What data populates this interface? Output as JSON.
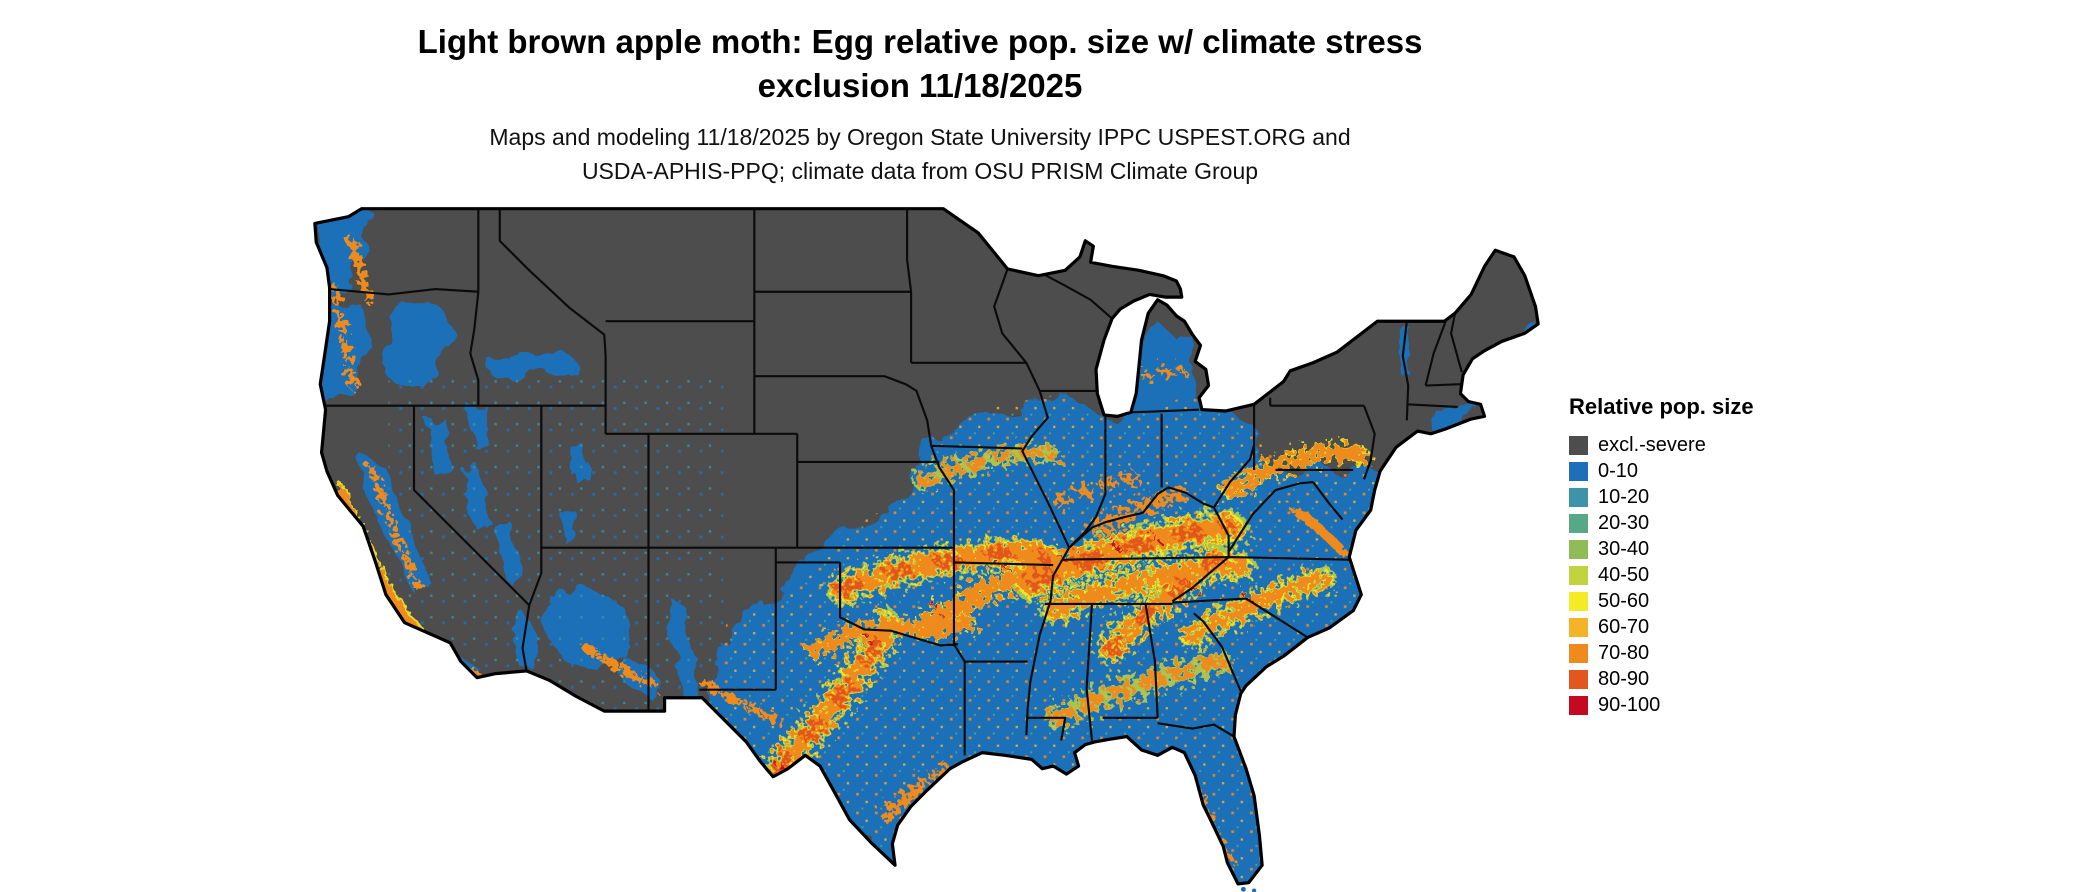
{
  "header": {
    "title_line1": "Light brown apple moth: Egg relative pop. size w/ climate stress",
    "title_line2": "exclusion 11/18/2025",
    "subtitle_line1": "Maps and modeling 11/18/2025 by Oregon State University IPPC USPEST.ORG and",
    "subtitle_line2": "USDA-APHIS-PPQ; climate data from OSU PRISM Climate Group"
  },
  "legend": {
    "title": "Relative pop. size",
    "items": [
      {
        "label": "excl.-severe",
        "color": "#4D4D4D"
      },
      {
        "label": "0-10",
        "color": "#1F6FB8"
      },
      {
        "label": "10-20",
        "color": "#3D93A8"
      },
      {
        "label": "20-30",
        "color": "#57A886"
      },
      {
        "label": "30-40",
        "color": "#8FBC56"
      },
      {
        "label": "40-50",
        "color": "#C3D33F"
      },
      {
        "label": "50-60",
        "color": "#F4EB26"
      },
      {
        "label": "60-70",
        "color": "#F5B32A"
      },
      {
        "label": "70-80",
        "color": "#EF8A1E"
      },
      {
        "label": "80-90",
        "color": "#E2571B"
      },
      {
        "label": "90-100",
        "color": "#C40A23"
      }
    ]
  },
  "map": {
    "region": "Continental United States",
    "base_color": "#4D4D4D",
    "low_pop_color": "#1F6FB8"
  }
}
